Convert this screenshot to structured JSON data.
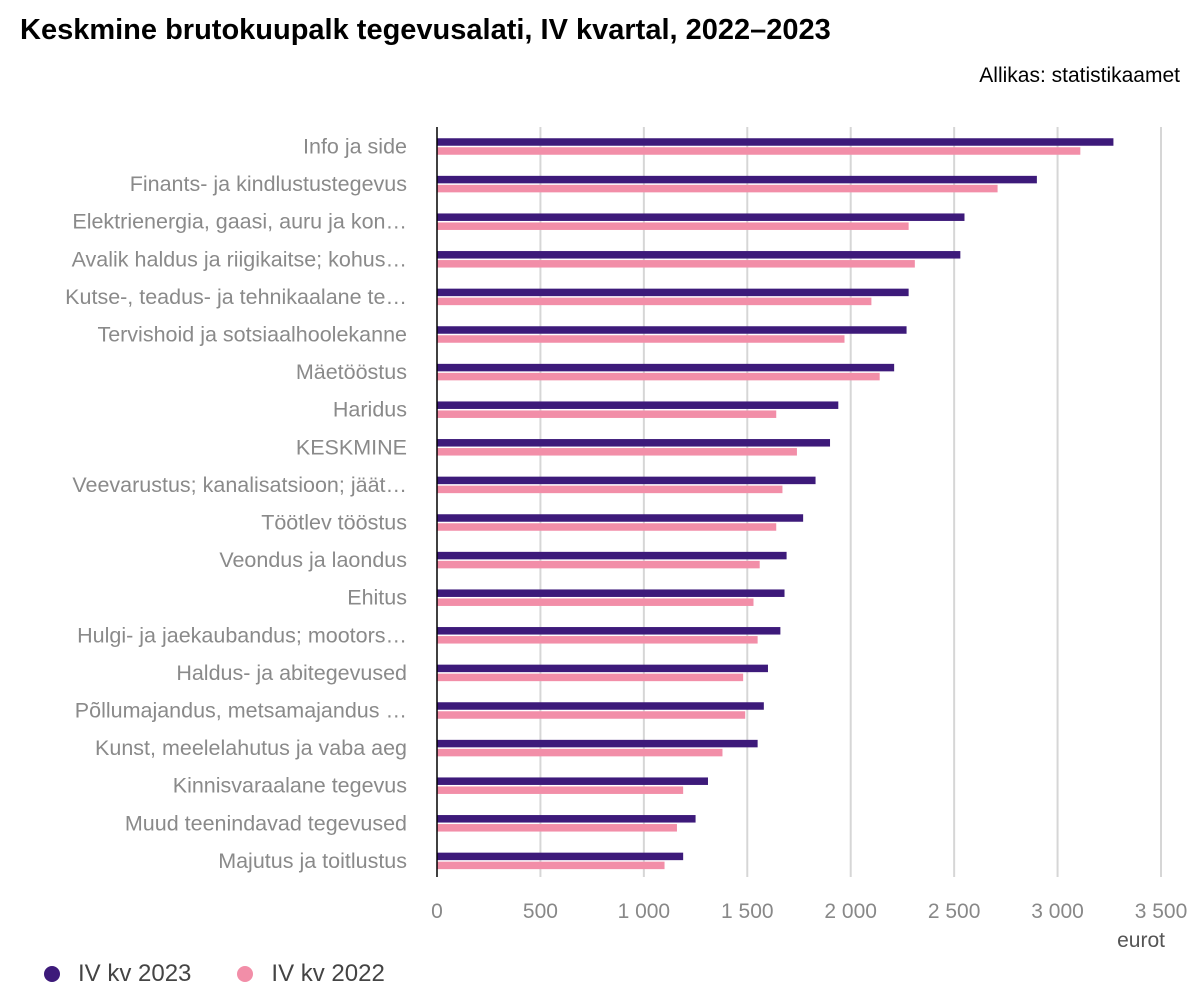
{
  "chart_data": {
    "type": "bar",
    "orientation": "horizontal",
    "title": "Keskmine brutokuupalk tegevusalati, IV kvartal, 2022–2023",
    "source": "Allikas: statistikaamet",
    "xlabel": "eurot",
    "xlim": [
      0,
      3500
    ],
    "xticks": [
      0,
      500,
      1000,
      1500,
      2000,
      2500,
      3000,
      3500
    ],
    "xtick_labels": [
      "0",
      "500",
      "1 000",
      "1 500",
      "2 000",
      "2 500",
      "3 000",
      "3 500"
    ],
    "grid": true,
    "legend_position": "bottom-left",
    "categories": [
      "Info ja side",
      "Finants- ja kindlustustegevus",
      "Elektrienergia, gaasi, auru ja kon…",
      "Avalik haldus ja riigikaitse; kohus…",
      "Kutse-, teadus- ja tehnikaalane te…",
      "Tervishoid ja sotsiaalhoolekanne",
      "Mäetööstus",
      "Haridus",
      "KESKMINE",
      "Veevarustus; kanalisatsioon; jäät…",
      "Töötlev tööstus",
      "Veondus ja laondus",
      "Ehitus",
      "Hulgi- ja jaekaubandus; mootors…",
      "Haldus- ja abitegevused",
      "Põllumajandus, metsamajandus …",
      "Kunst, meelelahutus ja vaba aeg",
      "Kinnisvaraalane tegevus",
      "Muud teenindavad tegevused",
      "Majutus ja toitlustus"
    ],
    "series": [
      {
        "name": "IV kv 2023",
        "color": "#3d1a7a",
        "values": [
          3270,
          2900,
          2550,
          2530,
          2280,
          2270,
          2210,
          1940,
          1900,
          1830,
          1770,
          1690,
          1680,
          1660,
          1600,
          1580,
          1550,
          1310,
          1250,
          1190
        ]
      },
      {
        "name": "IV kv 2022",
        "color": "#f28ea8",
        "values": [
          3110,
          2710,
          2280,
          2310,
          2100,
          1970,
          2140,
          1640,
          1740,
          1670,
          1640,
          1560,
          1530,
          1550,
          1480,
          1490,
          1380,
          1190,
          1160,
          1100
        ]
      }
    ]
  }
}
